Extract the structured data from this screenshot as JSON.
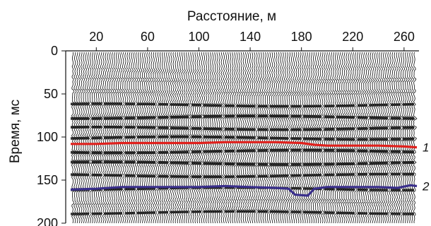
{
  "figure": {
    "x_axis_label": "Расстояние, м",
    "y_axis_label": "Время, мс",
    "x_ticks": [
      20,
      60,
      100,
      140,
      180,
      220,
      260
    ],
    "y_ticks": [
      0,
      50,
      100,
      150,
      200
    ],
    "x_range": [
      0,
      270
    ],
    "y_range": [
      0,
      200
    ]
  },
  "horizons": [
    {
      "label": "1",
      "color": "#e0201c",
      "points": [
        [
          0,
          108
        ],
        [
          20,
          108
        ],
        [
          40,
          107
        ],
        [
          60,
          107
        ],
        [
          80,
          107
        ],
        [
          100,
          107
        ],
        [
          120,
          106
        ],
        [
          140,
          106
        ],
        [
          160,
          106
        ],
        [
          180,
          107
        ],
        [
          190,
          109
        ],
        [
          200,
          110
        ],
        [
          220,
          110
        ],
        [
          240,
          110
        ],
        [
          260,
          111
        ],
        [
          270,
          112
        ]
      ]
    },
    {
      "label": "2",
      "color": "#3a2f8c",
      "points": [
        [
          0,
          161
        ],
        [
          20,
          160
        ],
        [
          40,
          158
        ],
        [
          60,
          158
        ],
        [
          80,
          158
        ],
        [
          100,
          158
        ],
        [
          120,
          157
        ],
        [
          140,
          158
        ],
        [
          160,
          159
        ],
        [
          170,
          160
        ],
        [
          175,
          167
        ],
        [
          185,
          168
        ],
        [
          190,
          160
        ],
        [
          200,
          158
        ],
        [
          220,
          158
        ],
        [
          240,
          158
        ],
        [
          255,
          159
        ],
        [
          265,
          156
        ],
        [
          270,
          157
        ]
      ]
    }
  ]
}
